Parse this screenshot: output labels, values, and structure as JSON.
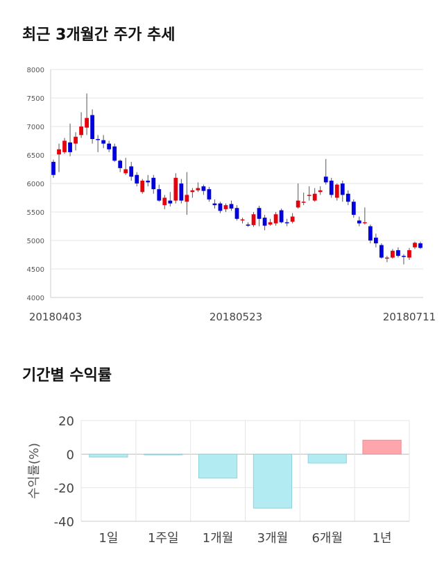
{
  "titles": {
    "price_trend": "최근 3개월간 주가 추세",
    "returns": "기간별 수익률"
  },
  "chart_data": [
    {
      "type": "candlestick",
      "ylim": [
        4000,
        8000
      ],
      "y_ticks": [
        4000,
        4500,
        5000,
        5500,
        6000,
        6500,
        7000,
        7500,
        8000
      ],
      "x_ticks": [
        "20180403",
        "20180523",
        "20180711"
      ],
      "grid": true,
      "colors": {
        "up": "#e8000b",
        "down": "#0000e0",
        "wick": "#555555"
      },
      "candles": [
        [
          6380,
          6150,
          6420,
          6100
        ],
        [
          6510,
          6600,
          6700,
          6200
        ],
        [
          6550,
          6750,
          6800,
          6520
        ],
        [
          6720,
          6550,
          7050,
          6480
        ],
        [
          6700,
          6820,
          6900,
          6580
        ],
        [
          6850,
          7000,
          7250,
          6800
        ],
        [
          6980,
          7150,
          7580,
          6850
        ],
        [
          7200,
          6780,
          7300,
          6700
        ],
        [
          6780,
          6770,
          6850,
          6550
        ],
        [
          6760,
          6700,
          6850,
          6620
        ],
        [
          6700,
          6600,
          6750,
          6550
        ],
        [
          6650,
          6400,
          6700,
          6380
        ],
        [
          6400,
          6270,
          6420,
          6200
        ],
        [
          6180,
          6250,
          6450,
          6150
        ],
        [
          6300,
          6120,
          6380,
          6050
        ],
        [
          6150,
          6000,
          6200,
          5950
        ],
        [
          5850,
          6050,
          6080,
          5820
        ],
        [
          6050,
          6020,
          6150,
          5950
        ],
        [
          6100,
          5900,
          6150,
          5820
        ],
        [
          5900,
          5700,
          5980,
          5680
        ],
        [
          5620,
          5750,
          5800,
          5550
        ],
        [
          5700,
          5650,
          5850,
          5600
        ],
        [
          5700,
          6100,
          6180,
          5650
        ],
        [
          6000,
          5700,
          6080,
          5650
        ],
        [
          5680,
          5800,
          6200,
          5450
        ],
        [
          5850,
          5880,
          5920,
          5750
        ],
        [
          5880,
          5920,
          6020,
          5850
        ],
        [
          5950,
          5870,
          5980,
          5800
        ],
        [
          5900,
          5720,
          5940,
          5680
        ],
        [
          5650,
          5620,
          5720,
          5560
        ],
        [
          5650,
          5520,
          5680,
          5480
        ],
        [
          5550,
          5620,
          5650,
          5500
        ],
        [
          5640,
          5560,
          5700,
          5520
        ],
        [
          5570,
          5380,
          5620,
          5350
        ],
        [
          5360,
          5370,
          5400,
          5300
        ],
        [
          5280,
          5260,
          5320,
          5240
        ],
        [
          5270,
          5460,
          5500,
          5240
        ],
        [
          5570,
          5380,
          5610,
          5250
        ],
        [
          5400,
          5260,
          5450,
          5180
        ],
        [
          5280,
          5320,
          5380,
          5260
        ],
        [
          5300,
          5460,
          5500,
          5260
        ],
        [
          5530,
          5320,
          5560,
          5300
        ],
        [
          5320,
          5310,
          5380,
          5250
        ],
        [
          5330,
          5420,
          5480,
          5300
        ],
        [
          5580,
          5700,
          6000,
          5560
        ],
        [
          5670,
          5680,
          5840,
          5620
        ],
        [
          5800,
          5800,
          5950,
          5700
        ],
        [
          5700,
          5820,
          5920,
          5680
        ],
        [
          5850,
          5880,
          5950,
          5800
        ],
        [
          6120,
          6020,
          6430,
          5980
        ],
        [
          6050,
          5800,
          6100,
          5750
        ],
        [
          5750,
          5980,
          6000,
          5700
        ],
        [
          6000,
          5800,
          6050,
          5680
        ],
        [
          5820,
          5680,
          5880,
          5620
        ],
        [
          5680,
          5450,
          5720,
          5400
        ],
        [
          5350,
          5300,
          5420,
          5250
        ],
        [
          5320,
          5320,
          5580,
          5280
        ],
        [
          5250,
          5000,
          5280,
          4950
        ],
        [
          5050,
          4950,
          5120,
          4880
        ],
        [
          4920,
          4700,
          4950,
          4680
        ],
        [
          4700,
          4700,
          4730,
          4620
        ],
        [
          4700,
          4820,
          4850,
          4680
        ],
        [
          4830,
          4730,
          4880,
          4700
        ],
        [
          4730,
          4720,
          4760,
          4580
        ],
        [
          4700,
          4830,
          4870,
          4660
        ],
        [
          4880,
          4960,
          4980,
          4850
        ],
        [
          4950,
          4870,
          4980,
          4850
        ]
      ]
    },
    {
      "type": "bar",
      "categories": [
        "1일",
        "1주일",
        "1개월",
        "3개월",
        "6개월",
        "1년"
      ],
      "values": [
        -1.8,
        -0.3,
        -14.3,
        -32.2,
        -5.3,
        8.3
      ],
      "ylabel": "수익률(%)",
      "ylim": [
        -40,
        20
      ],
      "y_ticks": [
        20,
        0,
        -20,
        -40
      ],
      "grid": true,
      "colors": {
        "positive": "#ffa6ad",
        "negative": "#b2ebf2"
      }
    }
  ]
}
